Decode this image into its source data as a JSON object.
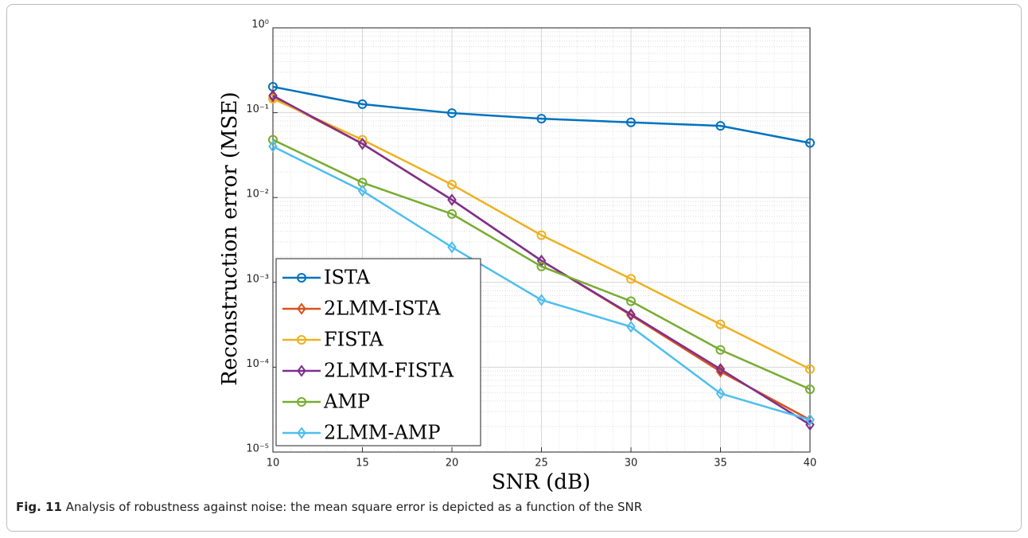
{
  "chart_data": {
    "type": "line",
    "y_label": "Reconstruction error (MSE)",
    "x_label": "SNR (dB)",
    "y_scale": "log",
    "grid": true,
    "minor_grid": true,
    "legend_position": "lower left",
    "x": [
      10,
      15,
      20,
      25,
      30,
      35,
      40
    ],
    "xlim": [
      10,
      40
    ],
    "xticks": [
      10,
      15,
      20,
      25,
      30,
      35,
      40
    ],
    "ylim": [
      1e-05,
      1
    ],
    "yticks": [
      {
        "value": 1e-05,
        "label": "10⁻⁵"
      },
      {
        "value": 0.0001,
        "label": "10⁻⁴"
      },
      {
        "value": 0.001,
        "label": "10⁻³"
      },
      {
        "value": 0.01,
        "label": "10⁻²"
      },
      {
        "value": 0.1,
        "label": "10⁻¹"
      },
      {
        "value": 1,
        "label": "10⁰"
      }
    ],
    "series": [
      {
        "name": "ISTA",
        "color": "#0072BD",
        "marker": "circle",
        "values": [
          0.202,
          0.126,
          0.099,
          0.085,
          0.077,
          0.07,
          0.044
        ]
      },
      {
        "name": "2LMM-ISTA",
        "color": "#D95319",
        "marker": "diamond",
        "values": [
          0.153,
          0.043,
          0.0094,
          0.0018,
          0.00041,
          8.9e-05,
          2.4e-05
        ]
      },
      {
        "name": "FISTA",
        "color": "#EDB120",
        "marker": "circle",
        "values": [
          0.146,
          0.048,
          0.0142,
          0.0036,
          0.0011,
          0.00032,
          9.5e-05
        ]
      },
      {
        "name": "2LMM-FISTA",
        "color": "#7E2F8E",
        "marker": "diamond",
        "values": [
          0.159,
          0.043,
          0.0094,
          0.0018,
          0.00042,
          9.5e-05,
          2.1e-05
        ]
      },
      {
        "name": "AMP",
        "color": "#77AC30",
        "marker": "circle",
        "values": [
          0.048,
          0.015,
          0.0064,
          0.00154,
          0.0006,
          0.00016,
          5.5e-05
        ]
      },
      {
        "name": "2LMM-AMP",
        "color": "#4DBEEE",
        "marker": "diamond",
        "values": [
          0.04,
          0.012,
          0.0026,
          0.00062,
          0.0003,
          4.9e-05,
          2.4e-05
        ]
      }
    ]
  },
  "caption": {
    "label": "Fig. 11",
    "text": "Analysis of robustness against noise: the mean square error is depicted as a function of the SNR"
  }
}
